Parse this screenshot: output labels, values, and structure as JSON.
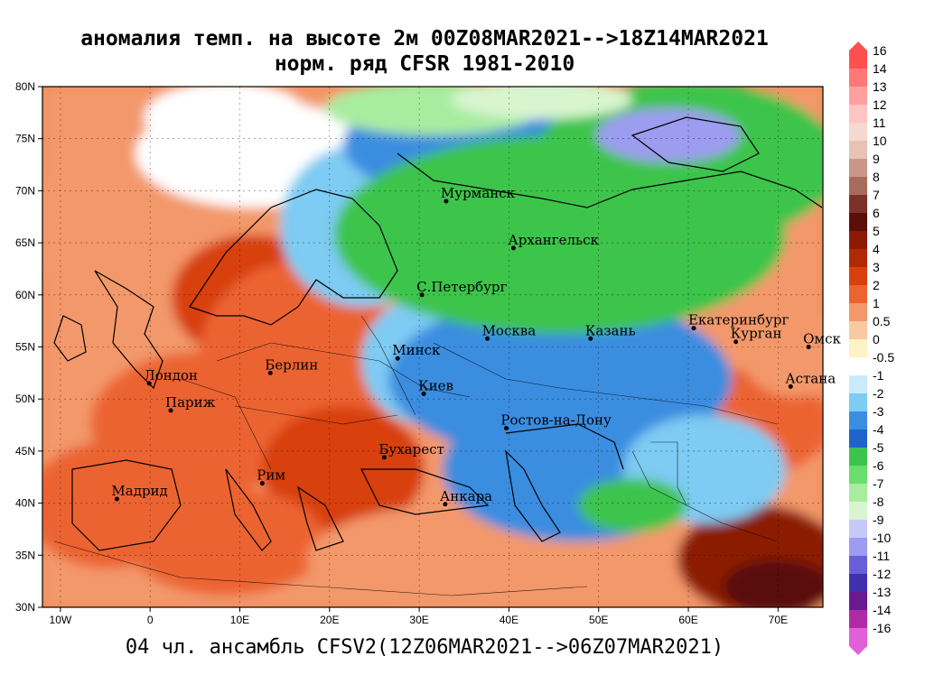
{
  "title_line1": "аномалия темп. на высоте 2м 00Z08MAR2021-->18Z14MAR2021",
  "title_line2": "норм. ряд CFSR 1981-2010",
  "footer": "04 чл. ансамбль CFSV2(12Z06MAR2021-->06Z07MAR2021)",
  "map_extent": {
    "lon_min": -12,
    "lon_max": 75,
    "lat_min": 30,
    "lat_max": 80
  },
  "lat_ticks": [
    {
      "v": 80,
      "label": "80N"
    },
    {
      "v": 75,
      "label": "75N"
    },
    {
      "v": 70,
      "label": "70N"
    },
    {
      "v": 65,
      "label": "65N"
    },
    {
      "v": 60,
      "label": "60N"
    },
    {
      "v": 55,
      "label": "55N"
    },
    {
      "v": 50,
      "label": "50N"
    },
    {
      "v": 45,
      "label": "45N"
    },
    {
      "v": 40,
      "label": "40N"
    },
    {
      "v": 35,
      "label": "35N"
    },
    {
      "v": 30,
      "label": "30N"
    }
  ],
  "lon_ticks": [
    {
      "v": -10,
      "label": "10W"
    },
    {
      "v": 0,
      "label": "0"
    },
    {
      "v": 10,
      "label": "10E"
    },
    {
      "v": 20,
      "label": "20E"
    },
    {
      "v": 30,
      "label": "30E"
    },
    {
      "v": 40,
      "label": "40E"
    },
    {
      "v": 50,
      "label": "50E"
    },
    {
      "v": 60,
      "label": "60E"
    },
    {
      "v": 70,
      "label": "70E"
    }
  ],
  "cities": [
    {
      "name": "Мурманск",
      "lon": 33.0,
      "lat": 69.0
    },
    {
      "name": "Архангельск",
      "lon": 40.5,
      "lat": 64.5
    },
    {
      "name": "С.Петербург",
      "lon": 30.3,
      "lat": 60.0
    },
    {
      "name": "Москва",
      "lon": 37.6,
      "lat": 55.8
    },
    {
      "name": "Казань",
      "lon": 49.1,
      "lat": 55.8
    },
    {
      "name": "Екатеринбург",
      "lon": 60.6,
      "lat": 56.8
    },
    {
      "name": "Курган",
      "lon": 65.3,
      "lat": 55.5
    },
    {
      "name": "Омск",
      "lon": 73.4,
      "lat": 55.0
    },
    {
      "name": "Астана",
      "lon": 71.4,
      "lat": 51.2
    },
    {
      "name": "Минск",
      "lon": 27.6,
      "lat": 53.9
    },
    {
      "name": "Киев",
      "lon": 30.5,
      "lat": 50.5
    },
    {
      "name": "Лондон",
      "lon": -0.1,
      "lat": 51.5
    },
    {
      "name": "Париж",
      "lon": 2.3,
      "lat": 48.9
    },
    {
      "name": "Берлин",
      "lon": 13.4,
      "lat": 52.5
    },
    {
      "name": "Ростов-на-Дону",
      "lon": 39.7,
      "lat": 47.2
    },
    {
      "name": "Бухарест",
      "lon": 26.1,
      "lat": 44.4
    },
    {
      "name": "Мадрид",
      "lon": -3.7,
      "lat": 40.4
    },
    {
      "name": "Рим",
      "lon": 12.5,
      "lat": 41.9
    },
    {
      "name": "Анкара",
      "lon": 32.9,
      "lat": 39.9
    }
  ],
  "colorbar": [
    {
      "label": "16",
      "color": "#ff4f4f"
    },
    {
      "label": "14",
      "color": "#ff7878"
    },
    {
      "label": "13",
      "color": "#ff9f9f"
    },
    {
      "label": "12",
      "color": "#ffc4c4"
    },
    {
      "label": "11",
      "color": "#f5d8d0"
    },
    {
      "label": "10",
      "color": "#e8c2b4"
    },
    {
      "label": "9",
      "color": "#c9978a"
    },
    {
      "label": "8",
      "color": "#a86c5a"
    },
    {
      "label": "7",
      "color": "#7a3326"
    },
    {
      "label": "6",
      "color": "#5a0f08"
    },
    {
      "label": "5",
      "color": "#8c1a05"
    },
    {
      "label": "4",
      "color": "#b02a05"
    },
    {
      "label": "3",
      "color": "#d84010"
    },
    {
      "label": "2",
      "color": "#ec6430"
    },
    {
      "label": "1",
      "color": "#f3986a"
    },
    {
      "label": "0.5",
      "color": "#f9c9a4"
    },
    {
      "label": "0",
      "color": "#fdf2c8"
    },
    {
      "label": "-0.5",
      "color": "#ffffff"
    },
    {
      "label": "-1",
      "color": "#c8ecfb"
    },
    {
      "label": "-2",
      "color": "#7ecbf3"
    },
    {
      "label": "-3",
      "color": "#3a8de0"
    },
    {
      "label": "-4",
      "color": "#1e63cc"
    },
    {
      "label": "-5",
      "color": "#3cc44c"
    },
    {
      "label": "-6",
      "color": "#6bdc6e"
    },
    {
      "label": "-7",
      "color": "#a8eca0"
    },
    {
      "label": "-8",
      "color": "#d8f5d0"
    },
    {
      "label": "-9",
      "color": "#c8c8f8"
    },
    {
      "label": "-10",
      "color": "#9c9cf0"
    },
    {
      "label": "-11",
      "color": "#6a5ed8"
    },
    {
      "label": "-12",
      "color": "#4030b0"
    },
    {
      "label": "-13",
      "color": "#6a1a90"
    },
    {
      "label": "-14",
      "color": "#b02aa8"
    },
    {
      "label": "-16",
      "color": "#e060d8"
    }
  ]
}
